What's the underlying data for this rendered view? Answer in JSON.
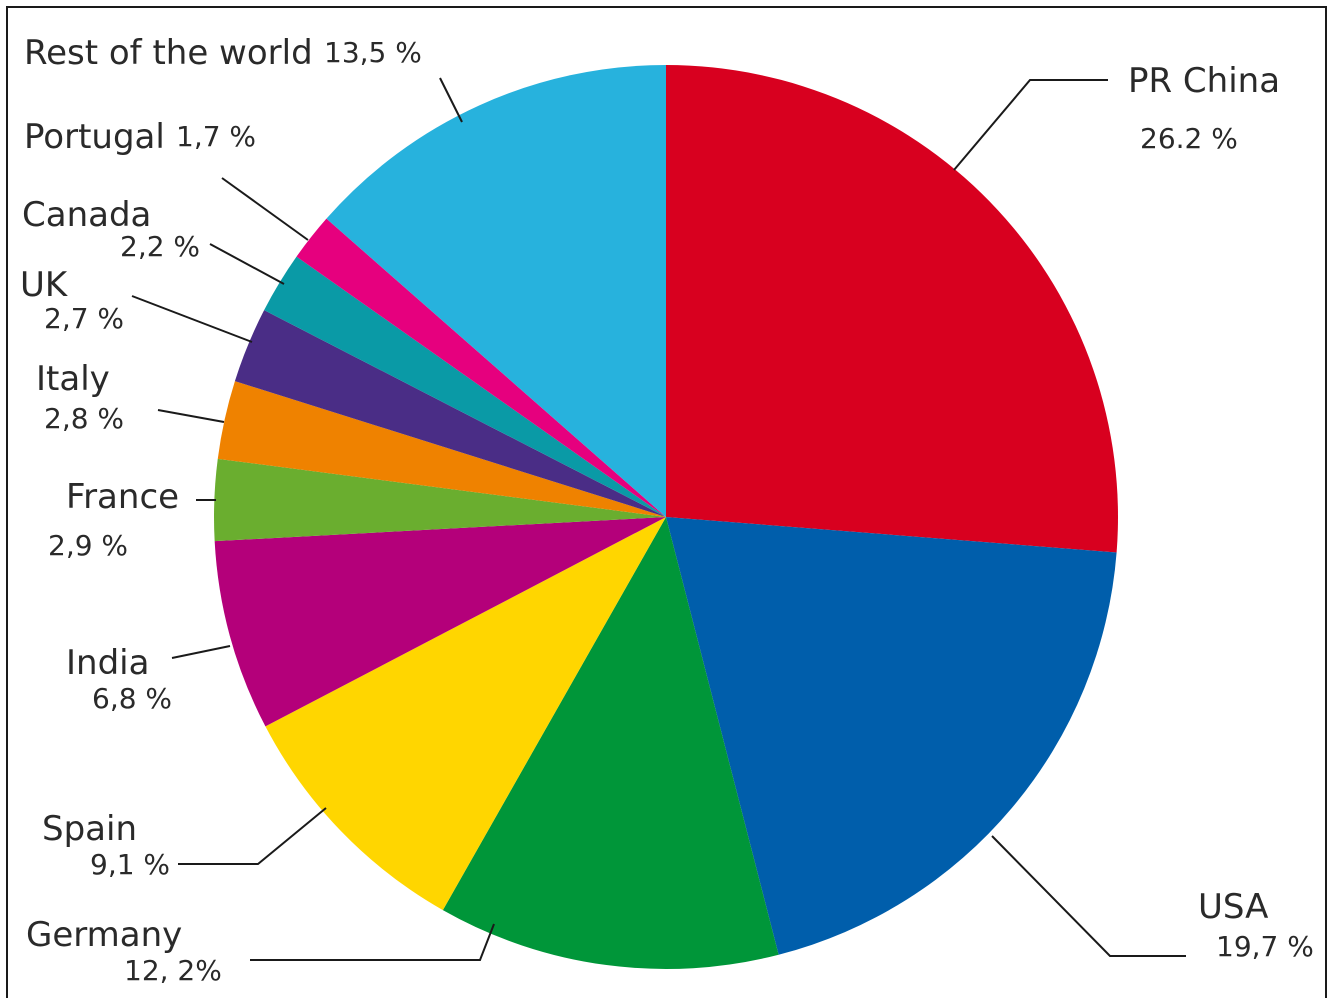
{
  "chart_data": {
    "type": "pie",
    "title": "",
    "slices": [
      {
        "name": "PR China",
        "value": 26.2,
        "label": "26.2 %",
        "color": "#d8001f"
      },
      {
        "name": "USA",
        "value": 19.7,
        "label": "19,7 %",
        "color": "#005eab"
      },
      {
        "name": "Germany",
        "value": 12.2,
        "label": "12, 2%",
        "color": "#009639"
      },
      {
        "name": "Spain",
        "value": 9.1,
        "label": "9,1 %",
        "color": "#ffd600"
      },
      {
        "name": "India",
        "value": 6.8,
        "label": "6,8 %",
        "color": "#b4007a"
      },
      {
        "name": "France",
        "value": 2.9,
        "label": "2,9 %",
        "color": "#6aae2f"
      },
      {
        "name": "Italy",
        "value": 2.8,
        "label": "2,8 %",
        "color": "#ef8200"
      },
      {
        "name": "UK",
        "value": 2.7,
        "label": "2,7 %",
        "color": "#4a2d86"
      },
      {
        "name": "Canada",
        "value": 2.2,
        "label": "2,2 %",
        "color": "#0a9aa6"
      },
      {
        "name": "Portugal",
        "value": 1.7,
        "label": "1,7 %",
        "color": "#e6007e"
      },
      {
        "name": "Rest of the world",
        "value": 13.5,
        "label": "13,5 %",
        "color": "#27b2dd"
      }
    ]
  }
}
